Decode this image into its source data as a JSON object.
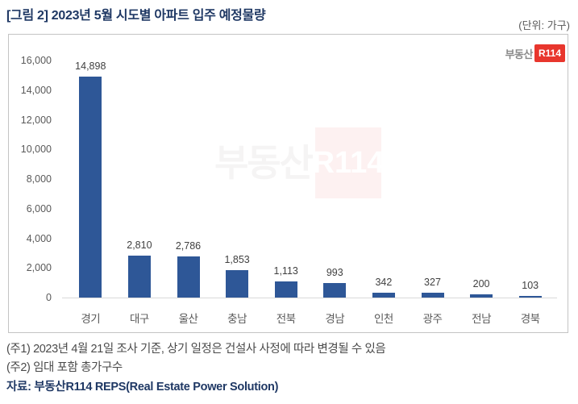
{
  "page": {
    "title": "[그림 2] 2023년 5월 시도별 아파트 입주 예정물량",
    "unit_label": "(단위: 가구)"
  },
  "logo": {
    "prefix": "부동산",
    "box": "R114"
  },
  "watermark": {
    "prefix": "부동산",
    "box": "R114"
  },
  "chart_data": {
    "type": "bar",
    "title": "2023년 5월 시도별 아파트 입주 예정물량",
    "unit": "가구",
    "categories": [
      "경기",
      "대구",
      "울산",
      "충남",
      "전북",
      "경남",
      "인천",
      "광주",
      "전남",
      "경북"
    ],
    "values": [
      14898,
      2810,
      2786,
      1853,
      1113,
      993,
      342,
      327,
      200,
      103
    ],
    "value_labels": [
      "14,898",
      "2,810",
      "2,786",
      "1,853",
      "1,113",
      "993",
      "342",
      "327",
      "200",
      "103"
    ],
    "xlabel": "",
    "ylabel": "",
    "ylim": [
      0,
      16000
    ],
    "ytick_step": 2000,
    "ytick_labels": [
      "0",
      "2,000",
      "4,000",
      "6,000",
      "8,000",
      "10,000",
      "12,000",
      "14,000",
      "16,000"
    ],
    "grid": false,
    "legend": "none",
    "bar_color": "#2E5797"
  },
  "footnotes": {
    "note1": "(주1) 2023년 4월 21일 조사 기준, 상기 일정은 건설사 사정에 따라 변경될 수 있음",
    "note2": "(주2) 임대 포함 총가구수",
    "source": "자료: 부동산R114 REPS(Real Estate Power Solution)"
  },
  "colors": {
    "title_navy": "#1F3864",
    "bar_blue": "#2E5797",
    "logo_red": "#E8362D",
    "axis_gray": "#D9D9D9",
    "label_gray": "#595959"
  }
}
